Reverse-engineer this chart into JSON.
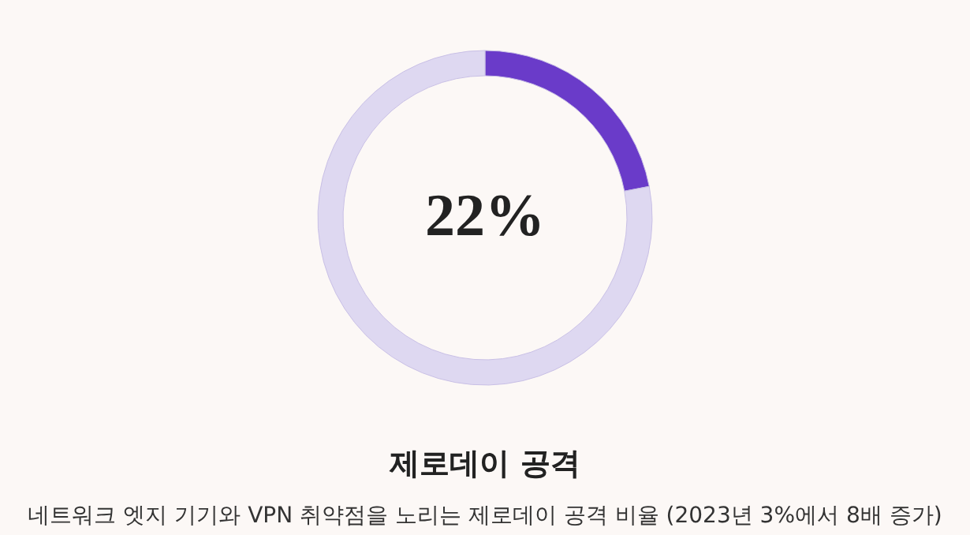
{
  "chart_data": {
    "type": "donut",
    "title": "제로데이 공격",
    "subtitle": "네트워크 엣지 기기와 VPN 취약점을 노리는 제로데이 공격 비율 (2023년 3%에서 8배 증가)",
    "categories": [
      null,
      null
    ],
    "values": [
      22,
      78
    ],
    "colors": [
      "#6a3bc9",
      "#ded8f1"
    ],
    "value_labels": [
      "22%",
      null
    ],
    "legend": false
  }
}
